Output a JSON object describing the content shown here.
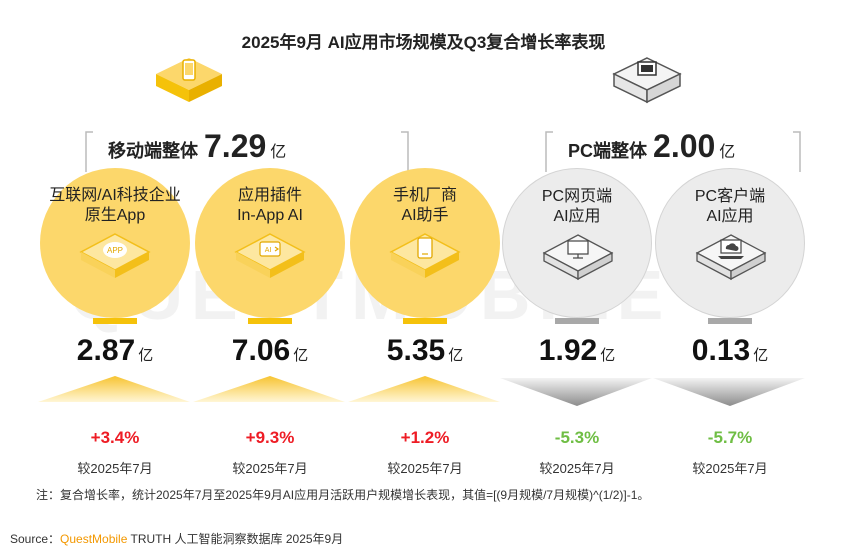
{
  "title": "2025年9月 AI应用市场规模及Q3复合增长率表现",
  "watermark": "QUESTMOBILE",
  "colors": {
    "yellow": "#fcd76b",
    "yellow_mark": "#f5c20a",
    "gray": "#ececec",
    "up": "#ee1c25",
    "down": "#6fbe44"
  },
  "groups": [
    {
      "label": "移动端整体",
      "value": "7.29",
      "unit": "亿",
      "icon": "mobile-phone-icon"
    },
    {
      "label": "PC端整体",
      "value": "2.00",
      "unit": "亿",
      "icon": "desktop-monitor-icon"
    }
  ],
  "chart_data": {
    "type": "bar",
    "title": "2025年9月 AI应用市场规模及Q3复合增长率表现",
    "unit": "亿",
    "categories": [
      "互联网/AI科技企业原生App",
      "应用插件 In-App AI",
      "手机厂商AI助手",
      "PC网页端AI应用",
      "PC客户端AI应用"
    ],
    "series": [
      {
        "name": "月活跃用户规模",
        "values": [
          2.87,
          7.06,
          5.35,
          1.92,
          0.13
        ]
      },
      {
        "name": "复合增长率",
        "values": [
          3.4,
          9.3,
          1.2,
          -5.3,
          -5.7
        ]
      }
    ],
    "segments": [
      {
        "label_line1": "互联网/AI科技企业",
        "label_line2": "原生App",
        "value": "2.87",
        "unit": "亿",
        "growth": "+3.4%",
        "direction": "up",
        "compare": "较2025年7月",
        "icon": "app-badge-icon",
        "tone": "y"
      },
      {
        "label_line1": "应用插件",
        "label_line2": "In-App AI",
        "value": "7.06",
        "unit": "亿",
        "growth": "+9.3%",
        "direction": "up",
        "compare": "较2025年7月",
        "icon": "ai-plugin-icon",
        "tone": "y"
      },
      {
        "label_line1": "手机厂商",
        "label_line2": "AI助手",
        "value": "5.35",
        "unit": "亿",
        "growth": "+1.2%",
        "direction": "up",
        "compare": "较2025年7月",
        "icon": "phone-assistant-icon",
        "tone": "y"
      },
      {
        "label_line1": "PC网页端",
        "label_line2": "AI应用",
        "value": "1.92",
        "unit": "亿",
        "growth": "-5.3%",
        "direction": "down",
        "compare": "较2025年7月",
        "icon": "web-monitor-icon",
        "tone": "g"
      },
      {
        "label_line1": "PC客户端",
        "label_line2": "AI应用",
        "value": "0.13",
        "unit": "亿",
        "growth": "-5.7%",
        "direction": "down",
        "compare": "较2025年7月",
        "icon": "laptop-cloud-icon",
        "tone": "g"
      }
    ]
  },
  "note": "注：复合增长率，统计2025年7月至2025年9月AI应用月活跃用户规模增长表现，其值=[(9月规模/7月规模)^(1/2)]-1。",
  "source": {
    "prefix": "Source：",
    "brand": "QuestMobile",
    "rest": " TRUTH 人工智能洞察数据库 2025年9月"
  }
}
